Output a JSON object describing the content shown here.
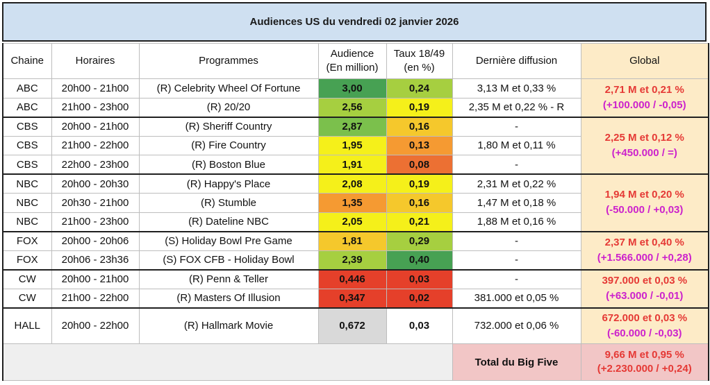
{
  "title": "Audiences US du vendredi 02 janvier 2026",
  "headers": {
    "chaine": "Chaine",
    "horaires": "Horaires",
    "programmes": "Programmes",
    "audience_l1": "Audience",
    "audience_l2": "(En million)",
    "taux_l1": "Taux 18/49",
    "taux_l2": "(en %)",
    "derniere": "Dernière diffusion",
    "global": "Global"
  },
  "groups": [
    {
      "global_main": "2,71 M et 0,21 %",
      "global_delta": "(+100.000 / -0,05)",
      "rows": [
        {
          "chaine": "ABC",
          "horaires": "20h00 - 21h00",
          "programme": "(R) Celebrity Wheel Of Fortune",
          "audience": "3,00",
          "taux": "0,24",
          "derniere": "3,13 M et 0,33 %"
        },
        {
          "chaine": "ABC",
          "horaires": "21h00 - 23h00",
          "programme": "(R) 20/20",
          "audience": "2,56",
          "taux": "0,19",
          "derniere": "2,35 M et 0,22 % - R"
        }
      ]
    },
    {
      "global_main": "2,25 M et 0,12 %",
      "global_delta": "(+450.000 / =)",
      "rows": [
        {
          "chaine": "CBS",
          "horaires": "20h00 - 21h00",
          "programme": "(R) Sheriff Country",
          "audience": "2,87",
          "taux": "0,16",
          "derniere": "-"
        },
        {
          "chaine": "CBS",
          "horaires": "21h00 - 22h00",
          "programme": "(R) Fire Country",
          "audience": "1,95",
          "taux": "0,13",
          "derniere": "1,80 M et 0,11 %"
        },
        {
          "chaine": "CBS",
          "horaires": "22h00 - 23h00",
          "programme": "(R) Boston Blue",
          "audience": "1,91",
          "taux": "0,08",
          "derniere": "-"
        }
      ]
    },
    {
      "global_main": "1,94 M et 0,20 %",
      "global_delta": "(-50.000 / +0,03)",
      "rows": [
        {
          "chaine": "NBC",
          "horaires": "20h00 - 20h30",
          "programme": "(R) Happy's Place",
          "audience": "2,08",
          "taux": "0,19",
          "derniere": "2,31 M et 0,22 %"
        },
        {
          "chaine": "NBC",
          "horaires": "20h30 - 21h00",
          "programme": "(R) Stumble",
          "audience": "1,35",
          "taux": "0,16",
          "derniere": "1,47 M et 0,18 %"
        },
        {
          "chaine": "NBC",
          "horaires": "21h00 - 23h00",
          "programme": "(R) Dateline NBC",
          "audience": "2,05",
          "taux": "0,21",
          "derniere": "1,88 M et 0,16 %"
        }
      ]
    },
    {
      "global_main": "2,37 M et 0,40 %",
      "global_delta": "(+1.566.000 / +0,28)",
      "rows": [
        {
          "chaine": "FOX",
          "horaires": "20h00 - 20h06",
          "programme": "(S) Holiday Bowl Pre Game",
          "audience": "1,81",
          "taux": "0,29",
          "derniere": "-"
        },
        {
          "chaine": "FOX",
          "horaires": "20h06 - 23h36",
          "programme": "(S) FOX CFB - Holiday Bowl",
          "audience": "2,39",
          "taux": "0,40",
          "derniere": "-"
        }
      ]
    },
    {
      "global_main": "397.000 et 0,03 %",
      "global_delta": "(+63.000 / -0,01)",
      "rows": [
        {
          "chaine": "CW",
          "horaires": "20h00 - 21h00",
          "programme": "(R) Penn & Teller",
          "audience": "0,446",
          "taux": "0,03",
          "derniere": "-"
        },
        {
          "chaine": "CW",
          "horaires": "21h00 - 22h00",
          "programme": "(R) Masters Of Illusion",
          "audience": "0,347",
          "taux": "0,02",
          "derniere": "381.000 et 0,05 %"
        }
      ]
    },
    {
      "global_main": "672.000 et 0,03 %",
      "global_delta": "(-60.000 / -0,03)",
      "rows": [
        {
          "chaine": "HALL",
          "horaires": "20h00 - 22h00",
          "programme": "(R) Hallmark Movie",
          "audience": "0,672",
          "taux": "0,03",
          "derniere": "732.000 et 0,06 %"
        }
      ]
    }
  ],
  "footer": {
    "total_label": "Total du Big Five",
    "total_main": "9,66 M et 0,95 %",
    "total_delta": "(+2.230.000 / +0,24)"
  }
}
